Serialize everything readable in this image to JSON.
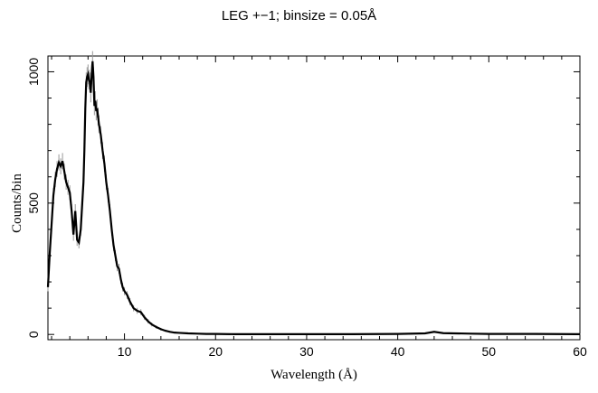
{
  "chart_data": {
    "type": "line",
    "title": "LEG +−1; binsize = 0.05Å",
    "xlabel": "Wavelength (Å)",
    "ylabel": "Counts/bin",
    "xlim": [
      1.6,
      60
    ],
    "ylim": [
      -20,
      1060
    ],
    "xticks": [
      10,
      20,
      30,
      40,
      50,
      60
    ],
    "yticks": [
      0,
      500,
      1000
    ],
    "grid": false,
    "series": [
      {
        "x": [
          1.6,
          1.8,
          2.0,
          2.2,
          2.4,
          2.6,
          2.8,
          3.0,
          3.2,
          3.4,
          3.6,
          3.8,
          4.0,
          4.2,
          4.4,
          4.6,
          4.8,
          5.0,
          5.2,
          5.4,
          5.5,
          5.6,
          5.7,
          5.8,
          5.9,
          6.0,
          6.1,
          6.2,
          6.3,
          6.4,
          6.5,
          6.6,
          6.7,
          6.8,
          6.9,
          7.0,
          7.1,
          7.2,
          7.4,
          7.6,
          7.8,
          8.0,
          8.2,
          8.4,
          8.6,
          8.8,
          9.0,
          9.2,
          9.4,
          9.6,
          9.8,
          10.0,
          10.3,
          10.6,
          11.0,
          11.4,
          11.8,
          12.2,
          12.6,
          13.0,
          13.5,
          14.0,
          14.5,
          15.0,
          15.5,
          16.0,
          17.0,
          18.0,
          19.0,
          20.0,
          22.0,
          25.0,
          30.0,
          35.0,
          40.0,
          43.0,
          44.0,
          45.0,
          48.0,
          50.0,
          55.0,
          60.0
        ],
        "y": [
          180,
          310,
          420,
          530,
          590,
          630,
          655,
          640,
          660,
          620,
          580,
          560,
          540,
          470,
          380,
          470,
          360,
          350,
          400,
          520,
          580,
          700,
          860,
          960,
          980,
          990,
          970,
          960,
          920,
          990,
          1040,
          980,
          870,
          890,
          850,
          860,
          830,
          800,
          760,
          700,
          650,
          580,
          530,
          470,
          400,
          340,
          300,
          260,
          250,
          210,
          180,
          165,
          150,
          125,
          100,
          90,
          85,
          65,
          50,
          38,
          28,
          20,
          14,
          10,
          7,
          6,
          4,
          3,
          2,
          2,
          1,
          1,
          1,
          1,
          2,
          4,
          10,
          5,
          3,
          2,
          2,
          1
        ]
      }
    ]
  }
}
